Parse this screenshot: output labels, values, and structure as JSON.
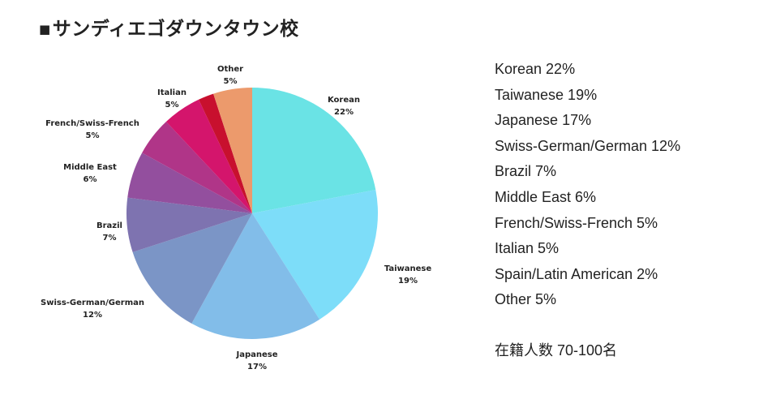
{
  "page": {
    "title_marker": "■",
    "title": "サンディエゴダウンタウン校",
    "note": "在籍人数 70-100名"
  },
  "chart_data": {
    "type": "pie",
    "title": "",
    "slices": [
      {
        "name": "Korean",
        "value": 22,
        "label": "22%",
        "color": "#6ae3e5"
      },
      {
        "name": "Taiwanese",
        "value": 19,
        "label": "19%",
        "color": "#7dddf9"
      },
      {
        "name": "Japanese",
        "value": 17,
        "label": "17%",
        "color": "#82bde9"
      },
      {
        "name": "Swiss-German/German",
        "value": 12,
        "label": "12%",
        "color": "#7b95c6"
      },
      {
        "name": "Brazil",
        "value": 7,
        "label": "7%",
        "color": "#7e73b0"
      },
      {
        "name": "Middle East",
        "value": 6,
        "label": "6%",
        "color": "#934f9e"
      },
      {
        "name": "French/Swiss-French",
        "value": 5,
        "label": "5%",
        "color": "#b03588"
      },
      {
        "name": "Italian",
        "value": 5,
        "label": "5%",
        "color": "#d4156c"
      },
      {
        "name": "Spain/Latin American",
        "value": 2,
        "label": "",
        "color": "#c8102e"
      },
      {
        "name": "Other",
        "value": 5,
        "label": "5%",
        "color": "#ec9a6c"
      }
    ],
    "legend": [
      "Korean 22%",
      "Taiwanese 19%",
      "Japanese 17%",
      "Swiss-German/German 12%",
      "Brazil 7%",
      "Middle East 6%",
      "French/Swiss-French 5%",
      "Italian 5%",
      "Spain/Latin American 2%",
      "Other 5%"
    ],
    "legend_placement": "right"
  }
}
